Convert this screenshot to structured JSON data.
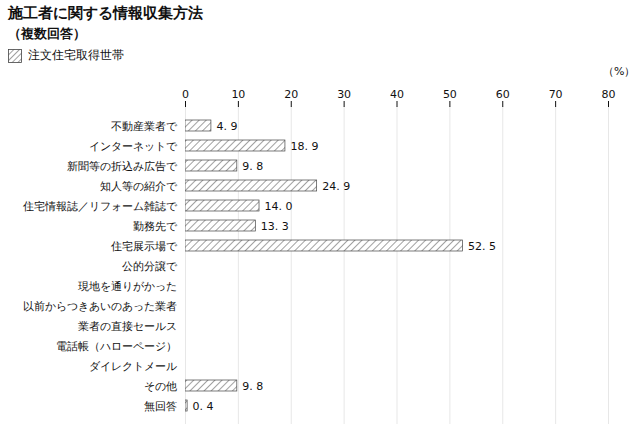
{
  "chart_data": {
    "type": "bar",
    "orientation": "horizontal",
    "title": "施工者に関する情報収集方法",
    "subtitle": "（複数回答）",
    "xlabel": "（%）",
    "categories": [
      "不動産業者で",
      "インターネットで",
      "新聞等の折込み広告で",
      "知人等の紹介で",
      "住宅情報誌／リフォーム雑誌で",
      "勤務先で",
      "住宅展示場で",
      "公的分譲で",
      "現地を通りがかった",
      "以前からつきあいのあった業者",
      "業者の直接セールス",
      "電話帳（ハローページ）",
      "ダイレクトメール",
      "その他",
      "無回答"
    ],
    "series": [
      {
        "name": "注文住宅取得世帯",
        "color": "#ffffff",
        "values": [
          4.9,
          18.9,
          9.8,
          24.9,
          14.0,
          13.3,
          52.5,
          0.0,
          0.0,
          0.0,
          0.0,
          0.0,
          0.0,
          9.8,
          0.4
        ],
        "value_labels": [
          "4. 9",
          "18. 9",
          "9. 8",
          "24. 9",
          "14. 0",
          "13. 3",
          "52. 5",
          null,
          null,
          null,
          null,
          null,
          null,
          "9. 8",
          "0. 4"
        ]
      }
    ],
    "xlim": [
      0,
      80
    ],
    "xticks": [
      0,
      10,
      20,
      30,
      40,
      50,
      60,
      70,
      80
    ],
    "grid": true,
    "data_labels": true,
    "legend": "top left"
  }
}
